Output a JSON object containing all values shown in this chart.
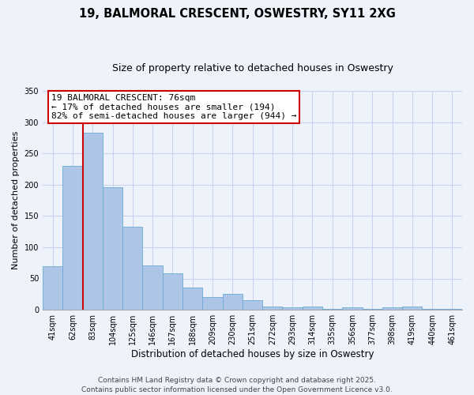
{
  "title": "19, BALMORAL CRESCENT, OSWESTRY, SY11 2XG",
  "subtitle": "Size of property relative to detached houses in Oswestry",
  "xlabel": "Distribution of detached houses by size in Oswestry",
  "ylabel": "Number of detached properties",
  "categories": [
    "41sqm",
    "62sqm",
    "83sqm",
    "104sqm",
    "125sqm",
    "146sqm",
    "167sqm",
    "188sqm",
    "209sqm",
    "230sqm",
    "251sqm",
    "272sqm",
    "293sqm",
    "314sqm",
    "335sqm",
    "356sqm",
    "377sqm",
    "398sqm",
    "419sqm",
    "440sqm",
    "461sqm"
  ],
  "values": [
    70,
    230,
    283,
    196,
    133,
    71,
    58,
    35,
    20,
    25,
    15,
    5,
    4,
    5,
    2,
    4,
    1,
    4,
    5,
    1,
    1
  ],
  "bar_color": "#adc6e8",
  "bar_edge_color": "#6aaad4",
  "background_color": "#eef2fb",
  "grid_color": "#c8d4ef",
  "ylim": [
    0,
    350
  ],
  "yticks": [
    0,
    50,
    100,
    150,
    200,
    250,
    300,
    350
  ],
  "marker_label": "19 BALMORAL CRESCENT: 76sqm",
  "annotation_line1": "← 17% of detached houses are smaller (194)",
  "annotation_line2": "82% of semi-detached houses are larger (944) →",
  "marker_color": "#cc0000",
  "box_facecolor": "#ffffff",
  "box_edgecolor": "#cc0000",
  "footer1": "Contains HM Land Registry data © Crown copyright and database right 2025.",
  "footer2": "Contains public sector information licensed under the Open Government Licence v3.0.",
  "title_fontsize": 10.5,
  "subtitle_fontsize": 9,
  "xlabel_fontsize": 8.5,
  "ylabel_fontsize": 8,
  "tick_fontsize": 7,
  "annotation_fontsize": 8,
  "footer_fontsize": 6.5
}
